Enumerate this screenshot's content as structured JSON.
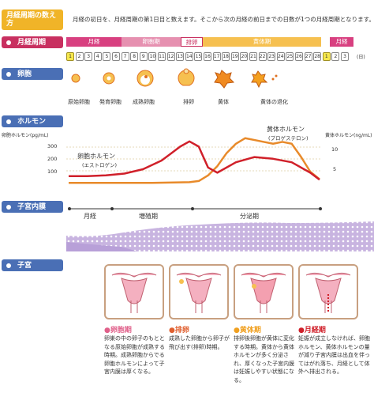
{
  "definition": {
    "label": "月経周期の数え方",
    "text": "月経の初日を、月経周期の第1日目と数えます。そこから次の月経の前日までの日数が1つの月経周期となります。"
  },
  "cycle": {
    "label": "月経周期",
    "phases": {
      "menses": "月経",
      "follicular": "卵胞期",
      "ovulation": "排卵",
      "luteal": "黄体期",
      "menses2": "月経"
    },
    "days": [
      "1",
      "2",
      "3",
      "4",
      "5",
      "6",
      "7",
      "8",
      "9",
      "10",
      "11",
      "12",
      "13",
      "14",
      "15",
      "16",
      "17",
      "18",
      "19",
      "20",
      "21",
      "22",
      "23",
      "24",
      "25",
      "26",
      "27",
      "28",
      "1",
      "2",
      "3"
    ],
    "unit": "(日)"
  },
  "follicle": {
    "label": "卵胞",
    "stages": [
      "原始卵胞",
      "発育卵胞",
      "成熟卵胞",
      "排卵",
      "黄体",
      "黄体の退化"
    ]
  },
  "hormone": {
    "label": "ホルモン",
    "estrogen_axis_label": "卵胞ホルモン(pg/mL)",
    "estrogen_ticks": [
      "300",
      "200",
      "100"
    ],
    "progesterone_axis_label": "黄体ホルモン(ng/mL)",
    "progesterone_ticks": [
      "10",
      "5"
    ],
    "estrogen_name": "卵胞ホルモン",
    "estrogen_sub": "(エストロゲン)",
    "progesterone_name": "黄体ホルモン",
    "progesterone_sub": "(プロゲステロン)",
    "colors": {
      "estrogen": "#d0202a",
      "progesterone": "#e88a2a"
    },
    "estrogen_values": [
      [
        1,
        60
      ],
      [
        3,
        60
      ],
      [
        5,
        65
      ],
      [
        7,
        75
      ],
      [
        9,
        100
      ],
      [
        11,
        150
      ],
      [
        12,
        190
      ],
      [
        13,
        230
      ],
      [
        14,
        260
      ],
      [
        15,
        230
      ],
      [
        16,
        110
      ],
      [
        17,
        80
      ],
      [
        19,
        140
      ],
      [
        21,
        170
      ],
      [
        23,
        160
      ],
      [
        25,
        140
      ],
      [
        27,
        80
      ],
      [
        28,
        40
      ]
    ],
    "progesterone_values": [
      [
        1,
        1
      ],
      [
        5,
        1
      ],
      [
        10,
        1
      ],
      [
        14,
        1.2
      ],
      [
        15,
        1.5
      ],
      [
        16,
        3
      ],
      [
        17,
        5.5
      ],
      [
        18,
        9
      ],
      [
        19,
        11.5
      ],
      [
        20,
        13
      ],
      [
        21,
        12.5
      ],
      [
        22,
        12
      ],
      [
        23,
        11.5
      ],
      [
        24,
        12
      ],
      [
        25,
        11.5
      ],
      [
        26,
        8
      ],
      [
        27,
        4
      ],
      [
        28,
        2
      ]
    ]
  },
  "endometrium": {
    "label": "子宮内膜",
    "stages": [
      "月経",
      "増殖期",
      "分泌期"
    ]
  },
  "uterus": {
    "label": "子宮",
    "phases": [
      {
        "name": "●卵胞期",
        "color": "#e0608a",
        "desc": "卵巣の中の卵子のもととなる原始卵胞が成熟する時期。成熟卵胞からでる卵胞ホルモンによって子宮内膜は厚くなる。"
      },
      {
        "name": "●排卵",
        "color": "#e06030",
        "desc": "成熟した卵胞から卵子が飛び出す(排卵)時期。"
      },
      {
        "name": "●黄体期",
        "color": "#f0a020",
        "desc": "排卵後卵胞が黄体に変化する時期。黄体から黄体ホルモンが多く分泌され、厚くなった子宮内膜は妊娠しやすい状態になる。"
      },
      {
        "name": "●月経期",
        "color": "#d0202a",
        "desc": "妊娠が成立しなければ、卵胞ホルモン、黄体ホルモンの量が減り子宮内膜は出血を伴ってはがれ落ち、月経として体外へ排出される。"
      }
    ]
  }
}
